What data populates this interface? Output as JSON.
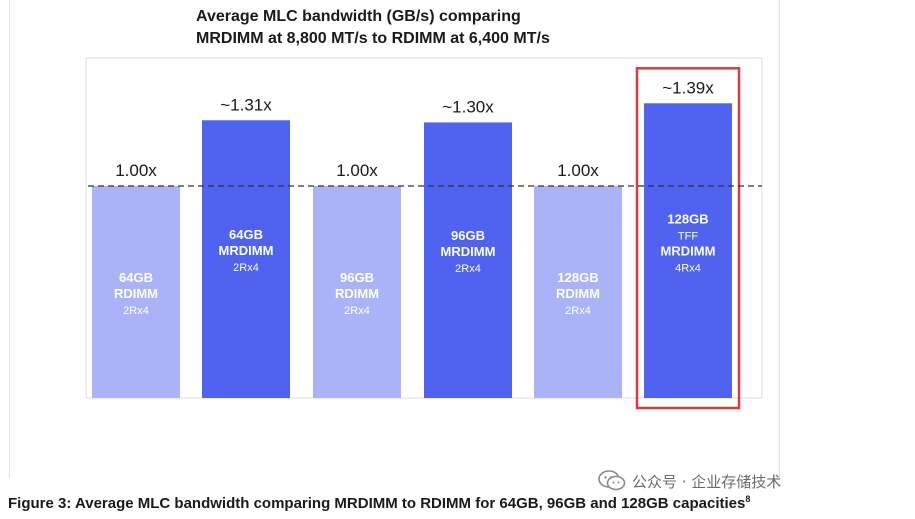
{
  "chart_data": {
    "type": "bar",
    "title_lines": [
      "Average MLC bandwidth (GB/s) comparing",
      "MRDIMM at 8,800 MT/s  to RDIMM at 6,400 MT/s"
    ],
    "baseline": 1.0,
    "ylim": [
      0,
      1.5
    ],
    "bars": [
      {
        "value_label": "1.00x",
        "value": 1.0,
        "lines": [
          "64GB",
          "RDIMM",
          "2Rx4"
        ],
        "kind": "RDIMM",
        "highlight": false
      },
      {
        "value_label": "~1.31x",
        "value": 1.31,
        "lines": [
          "64GB",
          "MRDIMM",
          "2Rx4"
        ],
        "kind": "MRDIMM",
        "highlight": false
      },
      {
        "value_label": "1.00x",
        "value": 1.0,
        "lines": [
          "96GB",
          "RDIMM",
          "2Rx4"
        ],
        "kind": "RDIMM",
        "highlight": false
      },
      {
        "value_label": "~1.30x",
        "value": 1.3,
        "lines": [
          "96GB",
          "MRDIMM",
          "2Rx4"
        ],
        "kind": "MRDIMM",
        "highlight": false
      },
      {
        "value_label": "1.00x",
        "value": 1.0,
        "lines": [
          "128GB",
          "RDIMM",
          "2Rx4"
        ],
        "kind": "RDIMM",
        "highlight": false
      },
      {
        "value_label": "~1.39x",
        "value": 1.39,
        "lines": [
          "128GB",
          "TFF",
          "MRDIMM",
          "4Rx4"
        ],
        "kind": "MRDIMM",
        "highlight": true
      }
    ],
    "colors": {
      "rdimm": "#aab3f8",
      "mrdimm": "#4f63f0",
      "highlight_box": "#e0373c",
      "baseline": "#333333"
    }
  },
  "caption": {
    "text": "Figure 3: Average MLC bandwidth comparing MRDIMM to RDIMM for 64GB, 96GB and 128GB capacities",
    "superscript": "8"
  },
  "watermark": {
    "text": "公众号 · 企业存储技术",
    "icon": "wechat-icon"
  }
}
